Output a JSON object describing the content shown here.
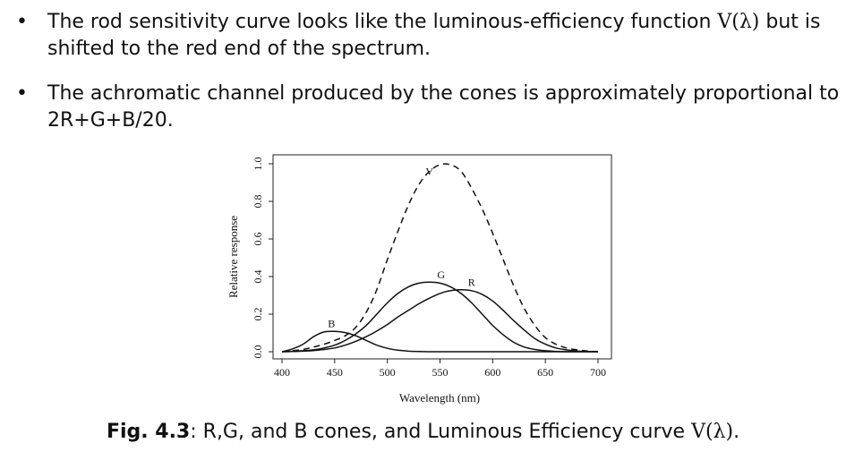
{
  "bullets": [
    {
      "line1_pre": "The rod sensitivity curve looks like the luminous-efficiency function ",
      "line1_func": "V(λ)",
      "line1_post": " but is",
      "line2": "shifted to the red end of the spectrum."
    },
    {
      "line1": "The achromatic channel produced by the cones is approximately proportional to",
      "line2": "2R+G+B/20."
    }
  ],
  "bullet_symbol": "•",
  "caption": {
    "label": "Fig. 4.3",
    "text": ": R,G, and B cones, and Luminous Efficiency curve ",
    "func": "V(λ)",
    "end": "."
  },
  "chart_data": {
    "type": "line",
    "title": "",
    "xlabel": "Wavelength (nm)",
    "ylabel": "Relative response",
    "xlim": [
      400,
      700
    ],
    "ylim": [
      0,
      1
    ],
    "x_ticks": [
      400,
      450,
      500,
      550,
      600,
      650,
      700
    ],
    "y_ticks": [
      "0.0",
      "0.2",
      "0.4",
      "0.6",
      "0.8",
      "1.0"
    ],
    "grid": false,
    "legend": "none",
    "x": [
      400,
      410,
      420,
      430,
      440,
      450,
      460,
      470,
      480,
      490,
      500,
      510,
      520,
      530,
      540,
      550,
      560,
      570,
      580,
      590,
      600,
      610,
      620,
      630,
      640,
      650,
      660,
      670,
      680,
      690,
      700
    ],
    "series": [
      {
        "name": "B",
        "style": "solid",
        "values": [
          0.0,
          0.015,
          0.04,
          0.08,
          0.105,
          0.108,
          0.102,
          0.085,
          0.06,
          0.035,
          0.018,
          0.008,
          0.003,
          0.001,
          0.0,
          0.0,
          0.0,
          0.0,
          0.0,
          0.0,
          0.0,
          0.0,
          0.0,
          0.0,
          0.0,
          0.0,
          0.0,
          0.0,
          0.0,
          0.0,
          0.0
        ]
      },
      {
        "name": "G",
        "style": "solid",
        "values": [
          0.0,
          0.002,
          0.005,
          0.01,
          0.02,
          0.035,
          0.06,
          0.095,
          0.14,
          0.2,
          0.26,
          0.31,
          0.345,
          0.365,
          0.37,
          0.365,
          0.345,
          0.31,
          0.26,
          0.2,
          0.14,
          0.09,
          0.05,
          0.025,
          0.012,
          0.005,
          0.002,
          0.0,
          0.0,
          0.0,
          0.0
        ]
      },
      {
        "name": "R",
        "style": "solid",
        "values": [
          0.0,
          0.001,
          0.003,
          0.006,
          0.012,
          0.02,
          0.035,
          0.055,
          0.08,
          0.11,
          0.145,
          0.185,
          0.22,
          0.255,
          0.285,
          0.31,
          0.325,
          0.33,
          0.325,
          0.305,
          0.27,
          0.22,
          0.165,
          0.115,
          0.07,
          0.04,
          0.02,
          0.01,
          0.004,
          0.001,
          0.0
        ]
      },
      {
        "name": "V",
        "style": "dashed",
        "values": [
          0.0,
          0.005,
          0.012,
          0.025,
          0.04,
          0.06,
          0.085,
          0.13,
          0.21,
          0.33,
          0.49,
          0.64,
          0.78,
          0.89,
          0.96,
          0.995,
          0.995,
          0.96,
          0.87,
          0.76,
          0.63,
          0.49,
          0.35,
          0.23,
          0.14,
          0.075,
          0.04,
          0.02,
          0.01,
          0.004,
          0.0
        ]
      }
    ],
    "annotations": [
      {
        "text": "B",
        "x": 447,
        "y": 0.13
      },
      {
        "text": "G",
        "x": 551,
        "y": 0.39
      },
      {
        "text": "R",
        "x": 580,
        "y": 0.35
      },
      {
        "text": "V",
        "x": 540,
        "y": 0.94
      }
    ]
  }
}
